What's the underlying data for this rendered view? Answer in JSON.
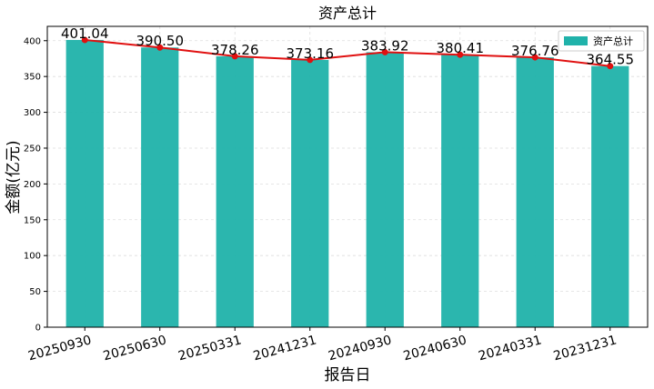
{
  "chart_data": {
    "type": "bar",
    "title": "资产总计",
    "xlabel": "报告日",
    "ylabel": "金额(亿元)",
    "categories": [
      "20250930",
      "20250630",
      "20250331",
      "20241231",
      "20240930",
      "20240630",
      "20240331",
      "20231231"
    ],
    "series": [
      {
        "name": "资产总计",
        "values": [
          401.04,
          390.5,
          378.26,
          373.16,
          383.92,
          380.41,
          376.76,
          364.55
        ],
        "color": "#20b2aa"
      }
    ],
    "overlay_line": {
      "color": "#e01010"
    },
    "data_labels": [
      "401.04",
      "390.50",
      "378.26",
      "373.16",
      "383.92",
      "380.41",
      "376.76",
      "364.55"
    ],
    "ylim": [
      0,
      420
    ],
    "yticks": [
      0,
      50,
      100,
      150,
      200,
      250,
      300,
      350,
      400
    ],
    "grid": true,
    "legend_position": "top-right"
  }
}
